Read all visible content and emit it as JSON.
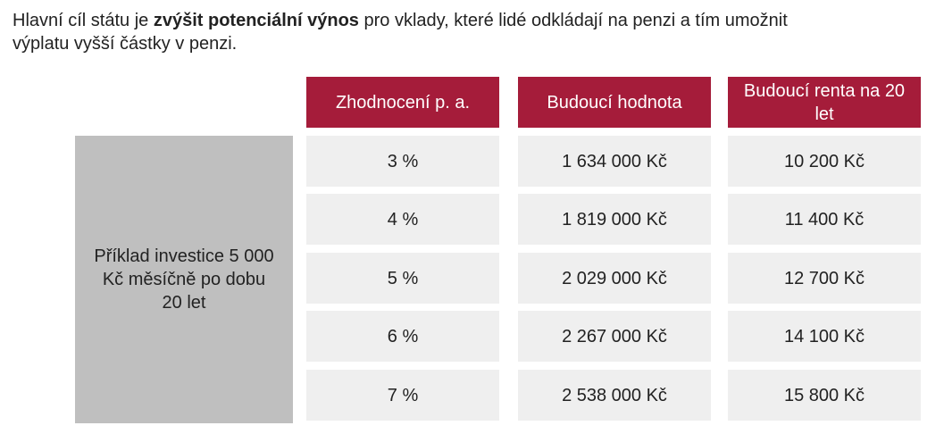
{
  "intro": {
    "before": "Hlavní cíl státu je ",
    "bold": "zvýšit potenciální výnos",
    "after": " pro vklady, které lidé odkládají na penzi a tím umožnit",
    "line2": "výplatu vyšší částky v penzi."
  },
  "table": {
    "side_label": "Příklad investice 5 000 Kč měsíčně po dobu 20 let",
    "headers": [
      "Zhodnocení p. a.",
      "Budoucí hodnota",
      "Budoucí renta na 20 let"
    ],
    "rows": [
      [
        "3 %",
        "1 634 000 Kč",
        "10 200 Kč"
      ],
      [
        "4 %",
        "1 819 000 Kč",
        "11 400 Kč"
      ],
      [
        "5 %",
        "2 029 000 Kč",
        "12 700 Kč"
      ],
      [
        "6 %",
        "2 267 000 Kč",
        "14 100 Kč"
      ],
      [
        "7 %",
        "2 538 000 Kč",
        "15 800 Kč"
      ]
    ]
  }
}
